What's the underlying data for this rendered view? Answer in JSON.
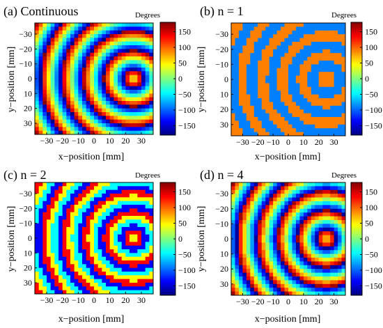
{
  "chart_data": [
    {
      "type": "heatmap",
      "panel_label": "(a) Continuous",
      "quantization_levels": null,
      "xlabel": "x−position [mm]",
      "ylabel": "y−position [mm]",
      "colorbar_label": "Degrees",
      "x_range": [
        -37.5,
        37.5
      ],
      "y_range": [
        -37.5,
        37.5
      ],
      "x_ticks": [
        -30,
        -20,
        -10,
        0,
        10,
        20,
        30
      ],
      "y_ticks": [
        -30,
        -20,
        -10,
        0,
        10,
        20,
        30
      ],
      "colorbar_range": [
        -180,
        180
      ],
      "colorbar_ticks": [
        150,
        100,
        50,
        0,
        -50,
        -100,
        -150
      ],
      "phase_center_mm": [
        25,
        0
      ],
      "center_phase_deg": 20
    },
    {
      "type": "heatmap",
      "panel_label": "(b)  n = 1",
      "quantization_levels": 2,
      "xlabel": "x−position [mm]",
      "ylabel": "y−position [mm]",
      "colorbar_label": "Degrees",
      "x_range": [
        -37.5,
        37.5
      ],
      "y_range": [
        -37.5,
        37.5
      ],
      "x_ticks": [
        -30,
        -20,
        -10,
        0,
        10,
        20,
        30
      ],
      "y_ticks": [
        -30,
        -20,
        -10,
        0,
        10,
        20,
        30
      ],
      "colorbar_range": [
        -180,
        180
      ],
      "colorbar_ticks": [
        150,
        100,
        50,
        0,
        -50,
        -100,
        -150
      ],
      "phase_center_mm": [
        25,
        0
      ],
      "center_phase_deg": 20
    },
    {
      "type": "heatmap",
      "panel_label": "(c)  n = 2",
      "quantization_levels": 4,
      "xlabel": "x−position [mm]",
      "ylabel": "y−position [mm]",
      "colorbar_label": "Degrees",
      "x_range": [
        -37.5,
        37.5
      ],
      "y_range": [
        -37.5,
        37.5
      ],
      "x_ticks": [
        -30,
        -20,
        -10,
        0,
        10,
        20,
        30
      ],
      "y_ticks": [
        -30,
        -20,
        -10,
        0,
        10,
        20,
        30
      ],
      "colorbar_range": [
        -180,
        180
      ],
      "colorbar_ticks": [
        150,
        100,
        50,
        0,
        -50,
        -100,
        -150
      ],
      "phase_center_mm": [
        25,
        0
      ],
      "center_phase_deg": 20
    },
    {
      "type": "heatmap",
      "panel_label": "(d)  n = 4",
      "quantization_levels": 16,
      "xlabel": "x−position [mm]",
      "ylabel": "y−position [mm]",
      "colorbar_label": "Degrees",
      "x_range": [
        -37.5,
        37.5
      ],
      "y_range": [
        -37.5,
        37.5
      ],
      "x_ticks": [
        -30,
        -20,
        -10,
        0,
        10,
        20,
        30
      ],
      "y_ticks": [
        -30,
        -20,
        -10,
        0,
        10,
        20,
        30
      ],
      "colorbar_range": [
        -180,
        180
      ],
      "colorbar_ticks": [
        150,
        100,
        50,
        0,
        -50,
        -100,
        -150
      ],
      "phase_center_mm": [
        25,
        0
      ],
      "center_phase_deg": 20
    }
  ]
}
